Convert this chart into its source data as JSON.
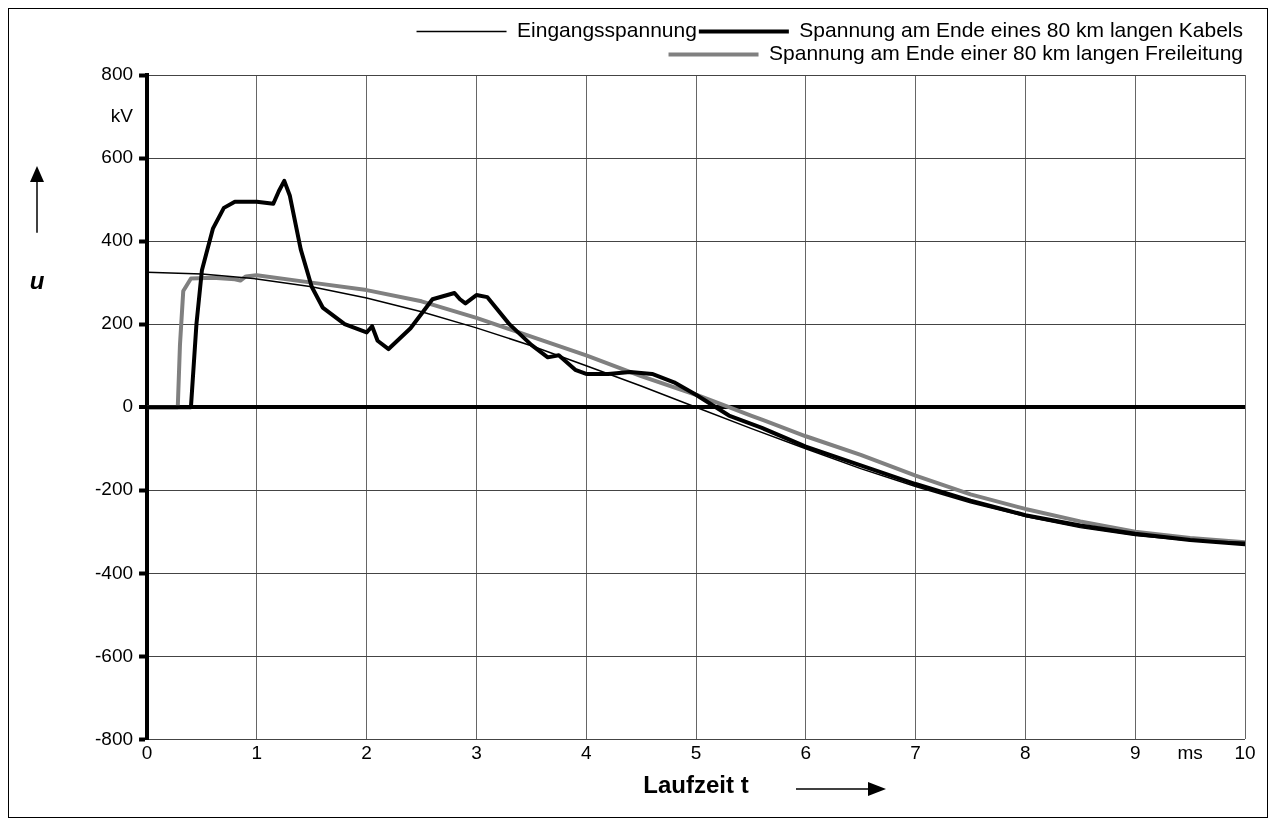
{
  "chart_data": {
    "type": "line",
    "xlabel": "Laufzeit t",
    "ylabel": "u",
    "xlim": [
      0,
      10
    ],
    "xticks": [
      0,
      1,
      2,
      3,
      4,
      5,
      6,
      7,
      8,
      9,
      {
        "value": 9.5,
        "label": "ms"
      },
      10
    ],
    "ylim": [
      -800,
      800
    ],
    "yticks": [
      -800,
      -600,
      -400,
      -200,
      0,
      200,
      400,
      600,
      {
        "value": 700,
        "label": "kV"
      },
      800
    ],
    "grid": true,
    "legend": "top right",
    "marker": "none",
    "line_style": "solid",
    "series": [
      {
        "name": "Eingangsspannung",
        "color": "#000000",
        "x": [
          0,
          0.5,
          1,
          1.5,
          2,
          2.5,
          3,
          3.5,
          4,
          4.5,
          5,
          5.5,
          6,
          6.5,
          7,
          7.5,
          8,
          8.5,
          9,
          9.5,
          10
        ],
        "values": [
          325,
          321,
          309,
          290,
          263,
          230,
          191,
          148,
          100,
          51,
          0,
          -51,
          -100,
          -148,
          -191,
          -230,
          -263,
          -290,
          -309,
          -321,
          -325
        ]
      },
      {
        "name": "Spannung am Ende eines 80 km langen Kabels",
        "color": "#000000",
        "x": [
          0,
          0.4,
          0.45,
          0.5,
          0.6,
          0.7,
          0.8,
          1.0,
          1.15,
          1.2,
          1.25,
          1.3,
          1.4,
          1.5,
          1.6,
          1.8,
          2.0,
          2.05,
          2.1,
          2.2,
          2.4,
          2.6,
          2.8,
          2.85,
          2.9,
          3.0,
          3.1,
          3.3,
          3.5,
          3.65,
          3.75,
          3.9,
          4.0,
          4.2,
          4.4,
          4.6,
          4.8,
          5.0,
          5.3,
          5.6,
          6.0,
          6.5,
          7.0,
          7.5,
          8.0,
          8.5,
          9.0,
          9.5,
          10
        ],
        "values": [
          0,
          0,
          200,
          330,
          430,
          480,
          495,
          495,
          490,
          520,
          545,
          510,
          380,
          290,
          240,
          200,
          180,
          195,
          160,
          140,
          190,
          260,
          275,
          260,
          250,
          270,
          265,
          200,
          150,
          120,
          125,
          90,
          80,
          80,
          85,
          80,
          60,
          30,
          -20,
          -50,
          -95,
          -140,
          -185,
          -225,
          -260,
          -285,
          -305,
          -320,
          -330
        ]
      },
      {
        "name": "Spannung am Ende einer 80 km langen Freileitung",
        "color": "#808080",
        "x": [
          0,
          0.28,
          0.3,
          0.33,
          0.4,
          0.6,
          0.8,
          0.85,
          0.9,
          1.0,
          1.5,
          2.0,
          2.5,
          3.0,
          3.5,
          4.0,
          4.5,
          5.0,
          5.3,
          5.5,
          6.0,
          6.5,
          7.0,
          7.5,
          8.0,
          8.5,
          9.0,
          9.5,
          10
        ],
        "values": [
          0,
          0,
          150,
          280,
          310,
          312,
          308,
          305,
          315,
          318,
          300,
          282,
          255,
          215,
          170,
          125,
          75,
          30,
          0,
          -20,
          -70,
          -115,
          -165,
          -210,
          -245,
          -275,
          -300,
          -315,
          -325
        ]
      }
    ]
  }
}
